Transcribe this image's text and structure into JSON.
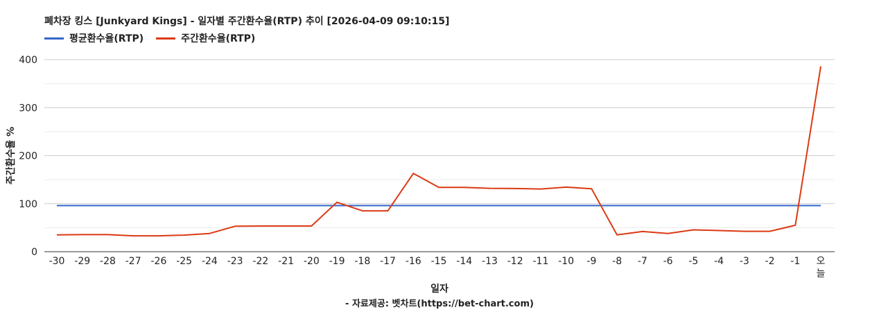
{
  "chart_data": {
    "type": "line",
    "title": "폐차장 킹스 [Junkyard Kings] - 일자별 주간환수율(RTP) 추이 [2026-04-09 09:10:15]",
    "xlabel": "일자",
    "ylabel": "주간환수율 %",
    "caption": "- 자료제공: 벳차트(https://bet-chart.com)",
    "categories": [
      "-30",
      "-29",
      "-28",
      "-27",
      "-26",
      "-25",
      "-24",
      "-23",
      "-22",
      "-21",
      "-20",
      "-19",
      "-18",
      "-17",
      "-16",
      "-15",
      "-14",
      "-13",
      "-12",
      "-11",
      "-10",
      "-9",
      "-8",
      "-7",
      "-6",
      "-5",
      "-4",
      "-3",
      "-2",
      "-1",
      "오늘"
    ],
    "series": [
      {
        "name": "평균환수율(RTP)",
        "color": "#3366cc",
        "values": [
          96,
          96,
          96,
          96,
          96,
          96,
          96,
          96,
          96,
          96,
          96,
          96,
          96,
          96,
          96,
          96,
          96,
          96,
          96,
          96,
          96,
          96,
          96,
          96,
          96,
          96,
          96,
          96,
          96,
          96,
          96
        ]
      },
      {
        "name": "주간환수율(RTP)",
        "color": "#dc3912",
        "values": [
          35,
          35.5,
          35.5,
          33,
          33,
          34.5,
          38,
          53,
          53.5,
          53.5,
          53.5,
          103,
          85,
          85,
          163,
          134,
          134,
          132,
          131.5,
          130.5,
          134.5,
          131,
          35,
          42,
          38,
          45.5,
          44,
          42.5,
          42.5,
          55,
          386
        ]
      }
    ],
    "ylim": [
      0,
      400
    ],
    "yticks": [
      0,
      100,
      200,
      300,
      400
    ],
    "grid": true,
    "legend_position": "top-left"
  }
}
